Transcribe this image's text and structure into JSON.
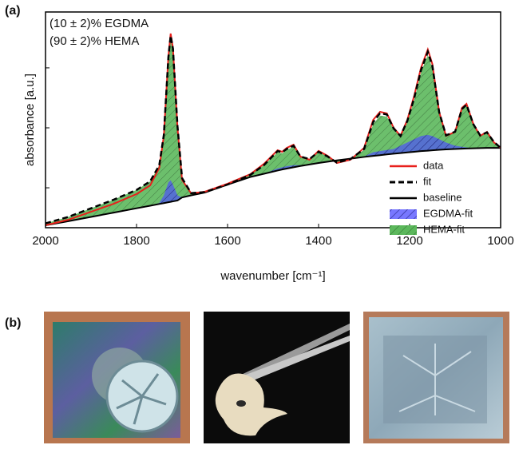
{
  "panel_labels": [
    "(a)",
    "(b)"
  ],
  "chart_data": {
    "type": "line",
    "annotations": [
      "(10 ± 2)% EGDMA",
      "(90 ± 2)% HEMA"
    ],
    "xlabel": "wavenumber [cm⁻¹]",
    "ylabel": "absorbance [a.u.]",
    "x": [
      2000,
      1950,
      1900,
      1850,
      1800,
      1770,
      1750,
      1740,
      1730,
      1725,
      1720,
      1710,
      1700,
      1680,
      1650,
      1600,
      1550,
      1520,
      1490,
      1480,
      1470,
      1455,
      1440,
      1420,
      1400,
      1380,
      1360,
      1330,
      1300,
      1280,
      1265,
      1250,
      1235,
      1220,
      1205,
      1190,
      1175,
      1160,
      1150,
      1135,
      1120,
      1100,
      1085,
      1075,
      1060,
      1045,
      1030,
      1015,
      1000
    ],
    "series": [
      {
        "name": "HEMA-fit",
        "color": "#5cb85c",
        "style": "hatched",
        "values": [
          0.02,
          0.05,
          0.09,
          0.13,
          0.175,
          0.215,
          0.29,
          0.43,
          0.78,
          0.88,
          0.82,
          0.47,
          0.23,
          0.16,
          0.165,
          0.2,
          0.245,
          0.29,
          0.35,
          0.345,
          0.36,
          0.375,
          0.33,
          0.318,
          0.35,
          0.33,
          0.302,
          0.318,
          0.36,
          0.48,
          0.52,
          0.515,
          0.455,
          0.425,
          0.49,
          0.59,
          0.72,
          0.8,
          0.74,
          0.53,
          0.428,
          0.44,
          0.545,
          0.565,
          0.478,
          0.428,
          0.44,
          0.396,
          0.37
        ]
      },
      {
        "name": "EGDMA-fit",
        "color": "#4a4aff",
        "style": "hatched",
        "values": [
          0.011,
          0.03,
          0.05,
          0.07,
          0.09,
          0.102,
          0.115,
          0.15,
          0.21,
          0.22,
          0.2,
          0.15,
          0.14,
          0.15,
          0.163,
          0.2,
          0.235,
          0.25,
          0.275,
          0.28,
          0.285,
          0.29,
          0.29,
          0.293,
          0.3,
          0.306,
          0.312,
          0.32,
          0.33,
          0.35,
          0.355,
          0.36,
          0.365,
          0.38,
          0.395,
          0.41,
          0.425,
          0.43,
          0.425,
          0.41,
          0.395,
          0.38,
          0.375,
          0.372,
          0.368,
          0.369,
          0.37,
          0.37,
          0.37
        ]
      },
      {
        "name": "baseline",
        "color": "#000000",
        "style": "solid",
        "values": [
          0.011,
          0.03,
          0.05,
          0.07,
          0.09,
          0.102,
          0.11,
          0.114,
          0.118,
          0.12,
          0.122,
          0.126,
          0.14,
          0.15,
          0.163,
          0.2,
          0.235,
          0.25,
          0.265,
          0.27,
          0.274,
          0.28,
          0.286,
          0.293,
          0.3,
          0.306,
          0.312,
          0.32,
          0.328,
          0.333,
          0.336,
          0.34,
          0.343,
          0.346,
          0.349,
          0.352,
          0.355,
          0.357,
          0.359,
          0.361,
          0.363,
          0.365,
          0.366,
          0.367,
          0.368,
          0.369,
          0.37,
          0.37,
          0.37
        ]
      },
      {
        "name": "data",
        "color": "#e8201c",
        "style": "solid",
        "values": [
          0.011,
          0.037,
          0.074,
          0.111,
          0.156,
          0.196,
          0.278,
          0.426,
          0.796,
          0.9,
          0.833,
          0.463,
          0.222,
          0.159,
          0.167,
          0.204,
          0.248,
          0.296,
          0.359,
          0.352,
          0.37,
          0.385,
          0.33,
          0.315,
          0.356,
          0.333,
          0.3,
          0.315,
          0.37,
          0.5,
          0.537,
          0.53,
          0.463,
          0.426,
          0.5,
          0.611,
          0.741,
          0.826,
          0.759,
          0.537,
          0.426,
          0.444,
          0.556,
          0.574,
          0.481,
          0.426,
          0.444,
          0.396,
          0.37
        ]
      },
      {
        "name": "fit",
        "color": "#000000",
        "style": "dashed",
        "values": [
          0.02,
          0.05,
          0.09,
          0.13,
          0.175,
          0.215,
          0.29,
          0.43,
          0.79,
          0.89,
          0.83,
          0.47,
          0.23,
          0.16,
          0.165,
          0.2,
          0.245,
          0.29,
          0.355,
          0.35,
          0.365,
          0.38,
          0.33,
          0.318,
          0.352,
          0.33,
          0.302,
          0.318,
          0.365,
          0.49,
          0.53,
          0.525,
          0.46,
          0.425,
          0.495,
          0.6,
          0.73,
          0.815,
          0.75,
          0.535,
          0.428,
          0.445,
          0.55,
          0.57,
          0.48,
          0.428,
          0.442,
          0.398,
          0.37
        ]
      }
    ],
    "legend_order": [
      3,
      4,
      2,
      1,
      0
    ],
    "legend": "lower right",
    "xlim": [
      2000,
      1000
    ],
    "ylim": [
      0,
      1
    ],
    "xticks": [
      2000,
      1800,
      1600,
      1400,
      1200,
      1000
    ],
    "yticks": [
      0.185,
      0.463,
      0.741
    ]
  }
}
